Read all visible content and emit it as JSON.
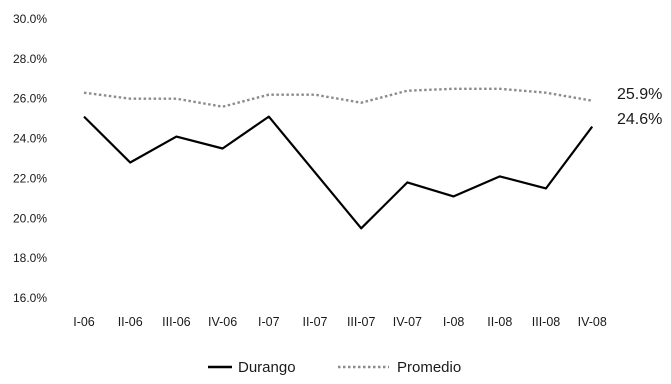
{
  "chart_data": {
    "type": "line",
    "categories": [
      "I-06",
      "II-06",
      "III-06",
      "IV-06",
      "I-07",
      "II-07",
      "III-07",
      "IV-07",
      "I-08",
      "II-08",
      "III-08",
      "IV-08"
    ],
    "series": [
      {
        "name": "Durango",
        "values": [
          25.1,
          22.8,
          24.1,
          23.5,
          25.1,
          22.3,
          19.5,
          21.8,
          21.1,
          22.1,
          21.5,
          24.6
        ],
        "color": "#000000",
        "style": "solid",
        "end_label": "24.6%"
      },
      {
        "name": "Promedio",
        "values": [
          26.3,
          26.0,
          26.0,
          25.6,
          26.2,
          26.2,
          25.8,
          26.4,
          26.5,
          26.5,
          26.3,
          25.9
        ],
        "color": "#8c8c8c",
        "style": "dotted",
        "end_label": "25.9%"
      }
    ],
    "y_ticks": [
      "16.0%",
      "18.0%",
      "20.0%",
      "22.0%",
      "24.0%",
      "26.0%",
      "28.0%",
      "30.0%"
    ],
    "ylim": [
      16,
      30
    ],
    "grid": false,
    "legend": "bottom-center",
    "title": "",
    "xlabel": "",
    "ylabel": ""
  }
}
